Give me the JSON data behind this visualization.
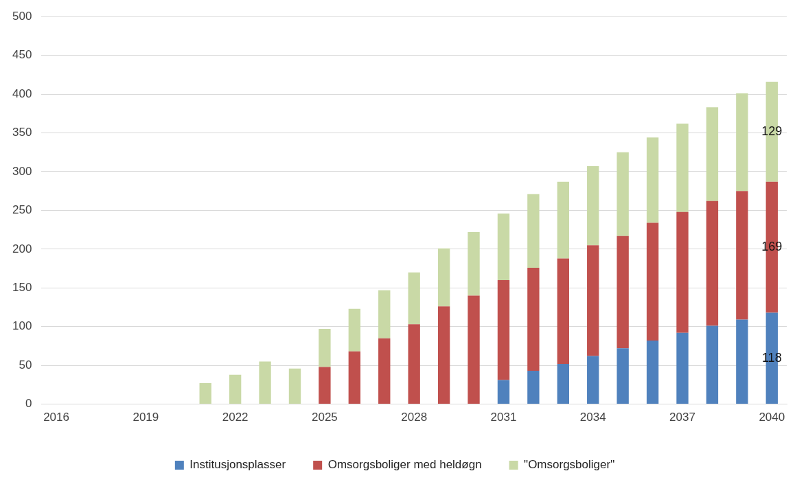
{
  "chart_data": {
    "type": "bar",
    "stacked": true,
    "categories": [
      "2016",
      null,
      null,
      "2019",
      null,
      null,
      "2022",
      null,
      null,
      "2025",
      null,
      null,
      "2028",
      null,
      null,
      "2031",
      null,
      null,
      "2034",
      null,
      null,
      "2037",
      null,
      null,
      "2040"
    ],
    "series": [
      {
        "name": "Institusjonsplasser",
        "color": "#4f81bd",
        "values": [
          null,
          null,
          null,
          null,
          null,
          null,
          null,
          null,
          null,
          null,
          null,
          null,
          null,
          null,
          null,
          31,
          43,
          52,
          62,
          72,
          82,
          92,
          101,
          109,
          118
        ],
        "value_labels": [
          null,
          null,
          null,
          null,
          null,
          null,
          null,
          null,
          null,
          null,
          null,
          null,
          null,
          null,
          null,
          null,
          null,
          null,
          null,
          null,
          null,
          null,
          null,
          null,
          "118"
        ]
      },
      {
        "name": "Omsorgsboliger med heldøgn",
        "color": "#c0504d",
        "values": [
          null,
          null,
          null,
          null,
          null,
          null,
          null,
          null,
          null,
          48,
          68,
          85,
          103,
          126,
          140,
          129,
          133,
          136,
          143,
          145,
          152,
          156,
          161,
          166,
          169
        ],
        "value_labels": [
          null,
          null,
          null,
          null,
          null,
          null,
          null,
          null,
          null,
          null,
          null,
          null,
          null,
          null,
          null,
          null,
          null,
          null,
          null,
          null,
          null,
          null,
          null,
          null,
          "169"
        ]
      },
      {
        "name": "\"Omsorgsboliger\"",
        "color": "#c9d9a6",
        "values": [
          null,
          null,
          null,
          null,
          null,
          27,
          38,
          55,
          46,
          49,
          55,
          62,
          67,
          75,
          82,
          86,
          95,
          99,
          102,
          108,
          110,
          114,
          121,
          126,
          129
        ],
        "value_labels": [
          null,
          null,
          null,
          null,
          null,
          null,
          null,
          null,
          null,
          null,
          null,
          null,
          null,
          null,
          null,
          null,
          null,
          null,
          null,
          null,
          null,
          null,
          null,
          null,
          "129"
        ]
      }
    ],
    "ylim": [
      0,
      500
    ],
    "yticks": [
      0,
      50,
      100,
      150,
      200,
      250,
      300,
      350,
      400,
      450,
      500
    ],
    "grid": "y",
    "legend": "bottom"
  }
}
